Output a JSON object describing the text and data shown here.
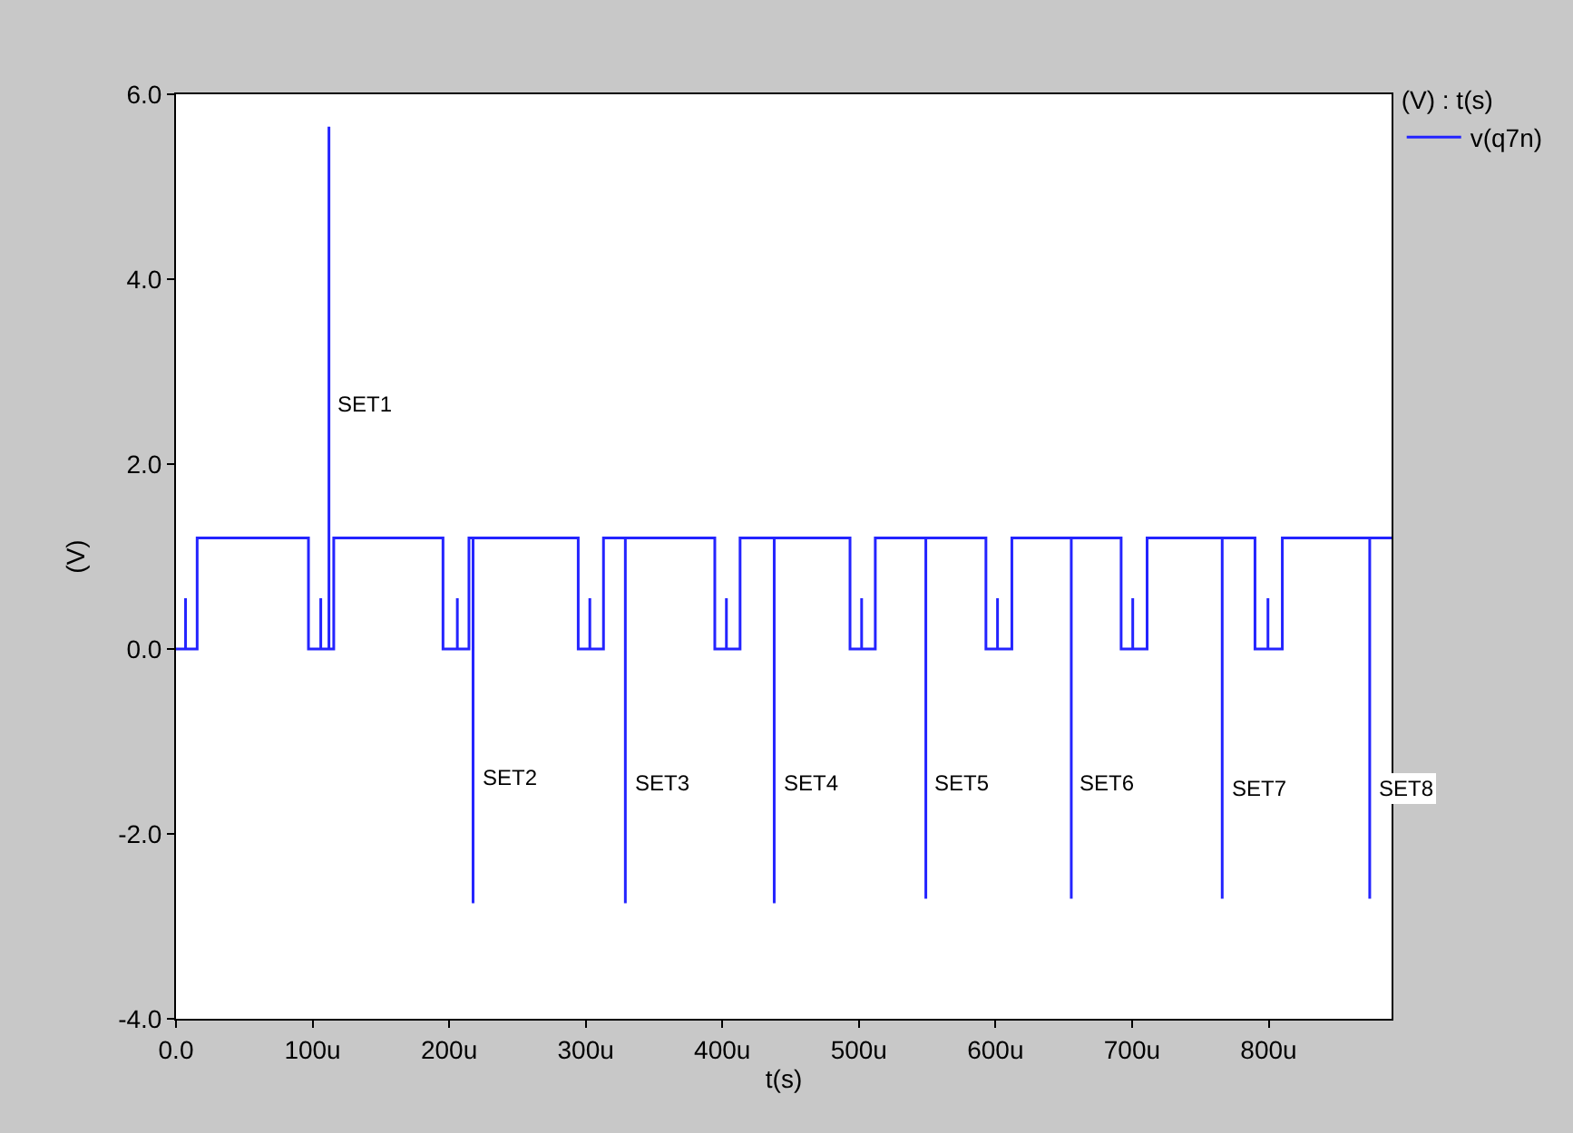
{
  "chart_data": {
    "type": "line",
    "xlabel": "t(s)",
    "ylabel": "(V)",
    "legend_title": "(V) : t(s)",
    "legend": "top right",
    "x": [
      0,
      7,
      7,
      7,
      15.5,
      15.5,
      97,
      97,
      106,
      106,
      106,
      112,
      112,
      112,
      115.5,
      115.5,
      195.5,
      195.5,
      206,
      206,
      206,
      214.5,
      214.5,
      217.5,
      217.5,
      217.5,
      294.5,
      294.5,
      303,
      303,
      303,
      313,
      313,
      329,
      329,
      329,
      394.5,
      394.5,
      403,
      403,
      403,
      413,
      413,
      438,
      438,
      438,
      493.5,
      493.5,
      502,
      502,
      502,
      512,
      512,
      549,
      549,
      549,
      593,
      593,
      601.5,
      601.5,
      601.5,
      612,
      612,
      655.5,
      655.5,
      655.5,
      692,
      692,
      700.5,
      700.5,
      700.5,
      711,
      711,
      766,
      766,
      766,
      790,
      790,
      799.5,
      799.5,
      799.5,
      810,
      810,
      874,
      874,
      874,
      890
    ],
    "series": [
      {
        "name": "v(q7n)",
        "color": "#2424ff",
        "values": [
          0,
          0,
          0.55,
          0,
          0,
          1.2,
          1.2,
          0,
          0,
          0.55,
          0,
          0,
          5.65,
          0,
          0,
          1.2,
          1.2,
          0,
          0,
          0.55,
          0,
          0,
          1.2,
          1.2,
          -2.75,
          1.2,
          1.2,
          0,
          0,
          0.55,
          0,
          0,
          1.2,
          1.2,
          -2.75,
          1.2,
          1.2,
          0,
          0,
          0.55,
          0,
          0,
          1.2,
          1.2,
          -2.75,
          1.2,
          1.2,
          0,
          0,
          0.55,
          0,
          0,
          1.2,
          1.2,
          -2.7,
          1.2,
          1.2,
          0,
          0,
          0.55,
          0,
          0,
          1.2,
          1.2,
          -2.7,
          1.2,
          1.2,
          0,
          0,
          0.55,
          0,
          0,
          1.2,
          1.2,
          -2.7,
          1.2,
          1.2,
          0,
          0,
          0.55,
          0,
          0,
          1.2,
          1.2,
          -2.7,
          1.2,
          1.2
        ]
      }
    ],
    "xlim": [
      0,
      890
    ],
    "xticks": [
      {
        "value": 0,
        "label": "0.0"
      },
      {
        "value": 100,
        "label": "100u"
      },
      {
        "value": 200,
        "label": "200u"
      },
      {
        "value": 300,
        "label": "300u"
      },
      {
        "value": 400,
        "label": "400u"
      },
      {
        "value": 500,
        "label": "500u"
      },
      {
        "value": 600,
        "label": "600u"
      },
      {
        "value": 700,
        "label": "700u"
      },
      {
        "value": 800,
        "label": "800u"
      }
    ],
    "ylim": [
      -4,
      6
    ],
    "yticks": [
      {
        "value": -4,
        "label": "-4.0"
      },
      {
        "value": -2,
        "label": "-2.0"
      },
      {
        "value": 0,
        "label": "0.0"
      },
      {
        "value": 2,
        "label": "2.0"
      },
      {
        "value": 4,
        "label": "4.0"
      },
      {
        "value": 6,
        "label": "6.0"
      }
    ],
    "annotations": [
      {
        "text": "SET1",
        "x": 112,
        "y": 2.65
      },
      {
        "text": "SET2",
        "x": 217.5,
        "y": -1.4
      },
      {
        "text": "SET3",
        "x": 329,
        "y": -1.45
      },
      {
        "text": "SET4",
        "x": 438,
        "y": -1.45
      },
      {
        "text": "SET5",
        "x": 549,
        "y": -1.45
      },
      {
        "text": "SET6",
        "x": 655.5,
        "y": -1.45
      },
      {
        "text": "SET7",
        "x": 766,
        "y": -1.5
      },
      {
        "text": "SET8",
        "x": 874,
        "y": -1.5
      }
    ]
  }
}
